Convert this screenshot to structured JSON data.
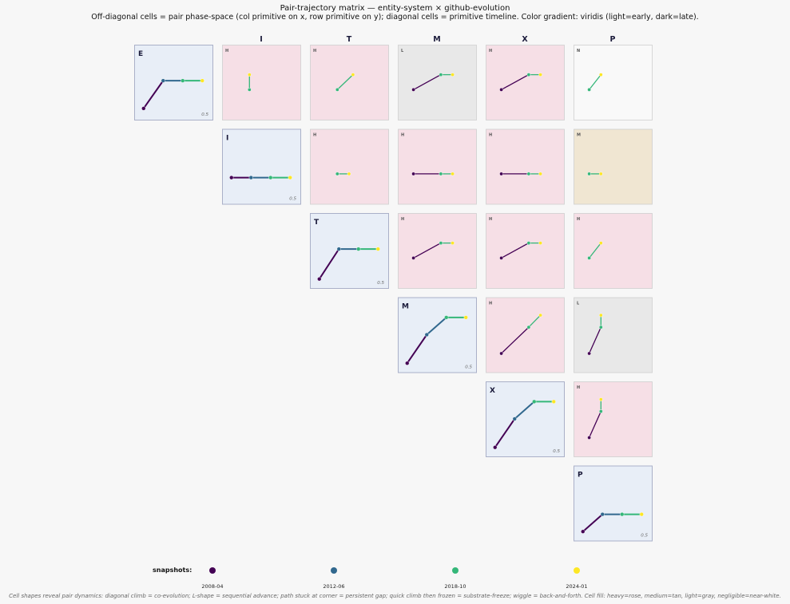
{
  "title": "Pair-trajectory matrix — entity-system × github-evolution",
  "subtitle": "Off-diagonal cells = pair phase-space (col primitive on x, row primitive on y); diagonal cells = primitive timeline. Color gradient: viridis (light=early, dark=late).",
  "legend": {
    "label": "snapshots:",
    "snapshots": [
      "2008-04",
      "2012-06",
      "2018-10",
      "2024-01"
    ],
    "colors": [
      "#440154",
      "#31688e",
      "#35b779",
      "#fde725"
    ]
  },
  "footnote": "Cell shapes reveal pair dynamics: diagonal climb = co-evolution; L-shape = sequential advance; path stuck at corner = persistent gap; quick climb then frozen = substrate-freeze; wiggle = back-and-forth. Cell fill: heavy=rose, medium=tan, light=gray, negligible=near-white.",
  "fill_colors": {
    "H": "#f6dfe6",
    "M": "#f0e6d2",
    "L": "#e8e8e8",
    "N": "#f9f9f9",
    "diag": "#e8eef7"
  },
  "chart_data": {
    "type": "pair-trajectory-matrix",
    "primitives": [
      "E",
      "I",
      "T",
      "M",
      "X",
      "P"
    ],
    "column_headers": [
      "I",
      "T",
      "M",
      "X",
      "P"
    ],
    "diagonal_scale_label": "0.5",
    "diagonal": [
      {
        "primitive": "E",
        "values": [
          0.15,
          0.52,
          0.52,
          0.52
        ]
      },
      {
        "primitive": "I",
        "values": [
          0.35,
          0.35,
          0.35,
          0.35
        ]
      },
      {
        "primitive": "T",
        "values": [
          0.12,
          0.52,
          0.52,
          0.52
        ]
      },
      {
        "primitive": "M",
        "values": [
          0.12,
          0.5,
          0.73,
          0.73
        ]
      },
      {
        "primitive": "X",
        "values": [
          0.12,
          0.5,
          0.73,
          0.73
        ]
      },
      {
        "primitive": "P",
        "values": [
          0.12,
          0.35,
          0.35,
          0.35
        ]
      }
    ],
    "pairs": [
      {
        "row": "E",
        "col": "I",
        "level": "H",
        "points": [
          [
            0.35,
            0.4
          ],
          [
            0.35,
            0.4
          ],
          [
            0.35,
            0.4
          ],
          [
            0.35,
            0.6
          ]
        ]
      },
      {
        "row": "E",
        "col": "T",
        "level": "H",
        "points": [
          [
            0.35,
            0.4
          ],
          [
            0.35,
            0.4
          ],
          [
            0.35,
            0.4
          ],
          [
            0.55,
            0.6
          ]
        ]
      },
      {
        "row": "E",
        "col": "M",
        "level": "L",
        "points": [
          [
            0.2,
            0.4
          ],
          [
            0.55,
            0.6
          ],
          [
            0.55,
            0.6
          ],
          [
            0.7,
            0.6
          ]
        ]
      },
      {
        "row": "E",
        "col": "X",
        "level": "H",
        "points": [
          [
            0.2,
            0.4
          ],
          [
            0.55,
            0.6
          ],
          [
            0.55,
            0.6
          ],
          [
            0.7,
            0.6
          ]
        ]
      },
      {
        "row": "E",
        "col": "P",
        "level": "N",
        "points": [
          [
            0.2,
            0.4
          ],
          [
            0.2,
            0.4
          ],
          [
            0.2,
            0.4
          ],
          [
            0.35,
            0.6
          ]
        ]
      },
      {
        "row": "I",
        "col": "T",
        "level": "H",
        "points": [
          [
            0.35,
            0.4
          ],
          [
            0.35,
            0.4
          ],
          [
            0.35,
            0.4
          ],
          [
            0.5,
            0.4
          ]
        ]
      },
      {
        "row": "I",
        "col": "M",
        "level": "H",
        "points": [
          [
            0.2,
            0.4
          ],
          [
            0.55,
            0.4
          ],
          [
            0.55,
            0.4
          ],
          [
            0.7,
            0.4
          ]
        ]
      },
      {
        "row": "I",
        "col": "X",
        "level": "H",
        "points": [
          [
            0.2,
            0.4
          ],
          [
            0.55,
            0.4
          ],
          [
            0.55,
            0.4
          ],
          [
            0.7,
            0.4
          ]
        ]
      },
      {
        "row": "I",
        "col": "P",
        "level": "M",
        "points": [
          [
            0.2,
            0.4
          ],
          [
            0.2,
            0.4
          ],
          [
            0.2,
            0.4
          ],
          [
            0.35,
            0.4
          ]
        ]
      },
      {
        "row": "T",
        "col": "M",
        "level": "H",
        "points": [
          [
            0.2,
            0.4
          ],
          [
            0.55,
            0.6
          ],
          [
            0.55,
            0.6
          ],
          [
            0.7,
            0.6
          ]
        ]
      },
      {
        "row": "T",
        "col": "X",
        "level": "H",
        "points": [
          [
            0.2,
            0.4
          ],
          [
            0.55,
            0.6
          ],
          [
            0.55,
            0.6
          ],
          [
            0.7,
            0.6
          ]
        ]
      },
      {
        "row": "T",
        "col": "P",
        "level": "H",
        "points": [
          [
            0.2,
            0.4
          ],
          [
            0.2,
            0.4
          ],
          [
            0.2,
            0.4
          ],
          [
            0.35,
            0.6
          ]
        ]
      },
      {
        "row": "M",
        "col": "X",
        "level": "H",
        "points": [
          [
            0.2,
            0.25
          ],
          [
            0.55,
            0.6
          ],
          [
            0.55,
            0.6
          ],
          [
            0.7,
            0.76
          ]
        ]
      },
      {
        "row": "M",
        "col": "P",
        "level": "L",
        "points": [
          [
            0.2,
            0.25
          ],
          [
            0.35,
            0.6
          ],
          [
            0.35,
            0.6
          ],
          [
            0.35,
            0.76
          ]
        ]
      },
      {
        "row": "X",
        "col": "P",
        "level": "H",
        "points": [
          [
            0.2,
            0.25
          ],
          [
            0.35,
            0.6
          ],
          [
            0.35,
            0.6
          ],
          [
            0.35,
            0.76
          ]
        ]
      }
    ]
  }
}
